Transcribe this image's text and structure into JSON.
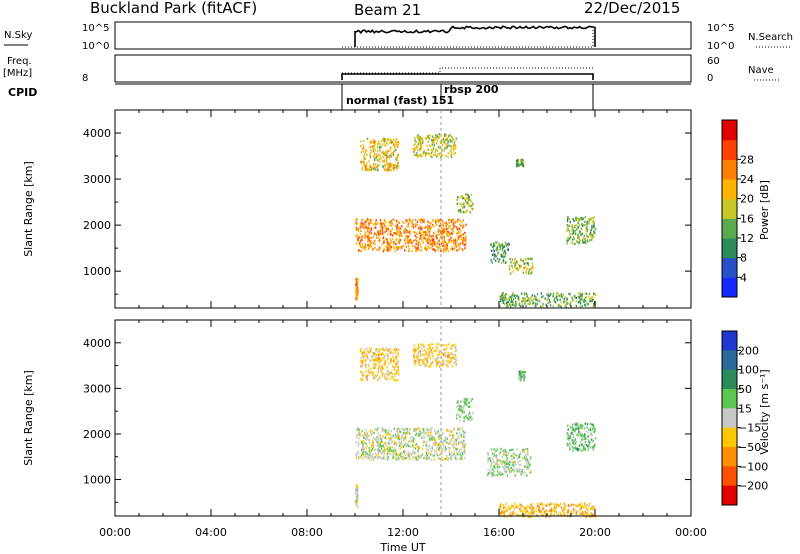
{
  "header": {
    "station": "Buckland Park (fitACF)",
    "beam": "Beam 21",
    "date": "22/Dec/2015"
  },
  "panels": {
    "nsky_label": "N.Sky",
    "nsky_ticks": [
      "10^5",
      "10^0"
    ],
    "nsearch_label": "N.Search",
    "nsearch_ticks": [
      "10^5",
      "10^0"
    ],
    "freq_label": "Freq.",
    "freq_unit": "[MHz]",
    "freq_tick": "8",
    "nave_label": "Nave",
    "nave_ticks": [
      "60",
      "0"
    ],
    "cpid_label": "CPID",
    "cpid_segments": [
      {
        "label": "normal (fast) 151",
        "start": 10.0,
        "end": 14.0
      },
      {
        "label": "rbsp 200",
        "start": 14.0,
        "end": 20.0
      }
    ]
  },
  "chart_data": [
    {
      "type": "heatmap",
      "quantity": "Power",
      "ylabel": "Slant Range [km]",
      "xlabel": "Time UT",
      "xlim": [
        0,
        24
      ],
      "ylim": [
        200,
        4500
      ],
      "x_ticks": [
        "00:00",
        "04:00",
        "08:00",
        "12:00",
        "16:00",
        "20:00",
        "00:00"
      ],
      "y_ticks": [
        1000,
        2000,
        3000,
        4000
      ],
      "colorbar": {
        "label": "Power [dB]",
        "ticks": [
          4,
          8,
          12,
          16,
          20,
          24,
          28
        ],
        "colors": [
          "#1428ff",
          "#2850c8",
          "#2a8a5a",
          "#5aaa50",
          "#c8c828",
          "#ffb400",
          "#ff8000",
          "#ff4000",
          "#e00000"
        ]
      },
      "regions": [
        {
          "t0": 10.0,
          "t1": 14.6,
          "r0": 1450,
          "r1": 2150,
          "value": 22
        },
        {
          "t0": 10.2,
          "t1": 11.8,
          "r0": 3200,
          "r1": 3900,
          "value": 18
        },
        {
          "t0": 12.4,
          "t1": 14.2,
          "r0": 3500,
          "r1": 4000,
          "value": 16
        },
        {
          "t0": 14.2,
          "t1": 14.9,
          "r0": 2300,
          "r1": 2700,
          "value": 14
        },
        {
          "t0": 15.6,
          "t1": 16.4,
          "r0": 1200,
          "r1": 1650,
          "value": 11
        },
        {
          "t0": 16.4,
          "t1": 17.4,
          "r0": 950,
          "r1": 1300,
          "value": 15
        },
        {
          "t0": 16.7,
          "t1": 17.0,
          "r0": 3300,
          "r1": 3450,
          "value": 11
        },
        {
          "t0": 18.8,
          "t1": 20.0,
          "r0": 1600,
          "r1": 2200,
          "value": 13
        },
        {
          "t0": 16.0,
          "t1": 20.0,
          "r0": 250,
          "r1": 550,
          "value": 12
        },
        {
          "t0": 10.0,
          "t1": 10.1,
          "r0": 400,
          "r1": 900,
          "value": 22
        }
      ]
    },
    {
      "type": "heatmap",
      "quantity": "Velocity",
      "ylabel": "Slant Range [km]",
      "xlabel": "Time UT",
      "xlim": [
        0,
        24
      ],
      "ylim": [
        200,
        4500
      ],
      "x_ticks": [
        "00:00",
        "04:00",
        "08:00",
        "12:00",
        "16:00",
        "20:00",
        "00:00"
      ],
      "y_ticks": [
        1000,
        2000,
        3000,
        4000
      ],
      "colorbar": {
        "label": "Velocity [m s⁻¹]",
        "ticks": [
          "200",
          "100",
          "50",
          "15",
          "−15",
          "−50",
          "−100",
          "−200"
        ],
        "colors": [
          "#2038d0",
          "#2a6a9a",
          "#2a8a5a",
          "#5ac850",
          "#c8c8c8",
          "#ffc800",
          "#ff9000",
          "#ff5000",
          "#e00000"
        ]
      },
      "regions": [
        {
          "t0": 10.0,
          "t1": 14.6,
          "r0": 1450,
          "r1": 2150,
          "value": 0
        },
        {
          "t0": 10.2,
          "t1": 11.8,
          "r0": 3200,
          "r1": 3900,
          "value": -30
        },
        {
          "t0": 12.4,
          "t1": 14.2,
          "r0": 3500,
          "r1": 4000,
          "value": -30
        },
        {
          "t0": 14.2,
          "t1": 14.9,
          "r0": 2300,
          "r1": 2800,
          "value": 20
        },
        {
          "t0": 15.5,
          "t1": 17.3,
          "r0": 1100,
          "r1": 1700,
          "value": 10
        },
        {
          "t0": 16.8,
          "t1": 17.1,
          "r0": 3200,
          "r1": 3400,
          "value": 30
        },
        {
          "t0": 18.8,
          "t1": 20.0,
          "r0": 1650,
          "r1": 2250,
          "value": 30
        },
        {
          "t0": 16.0,
          "t1": 20.0,
          "r0": 200,
          "r1": 500,
          "value": -40
        },
        {
          "t0": 10.0,
          "t1": 10.1,
          "r0": 400,
          "r1": 900,
          "value": 0
        }
      ]
    }
  ]
}
